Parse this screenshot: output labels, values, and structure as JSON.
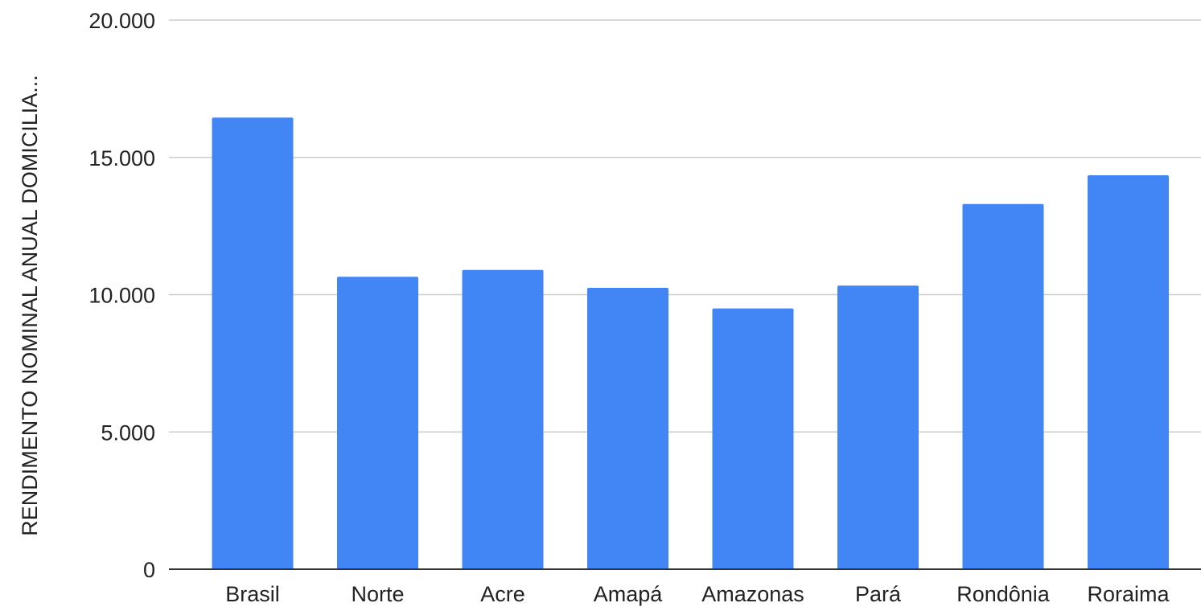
{
  "chart_data": {
    "type": "bar",
    "title": "",
    "xlabel": "",
    "ylabel": "RENDIMENTO NOMINAL ANUAL DOMICILIA...",
    "categories": [
      "Brasil",
      "Norte",
      "Acre",
      "Amapá",
      "Amazonas",
      "Pará",
      "Rondônia",
      "Roraima"
    ],
    "values": [
      16450,
      10650,
      10900,
      10250,
      9500,
      10330,
      13300,
      14350
    ],
    "ylim": [
      0,
      20000
    ],
    "yticks": [
      0,
      5000,
      10000,
      15000,
      20000
    ],
    "ytick_labels": [
      "0",
      "5.000",
      "10.000",
      "15.000",
      "20.000"
    ],
    "grid": true,
    "legend": "none",
    "bar_color": "#4285f4",
    "grid_color": "#cccccc",
    "axis_color": "#333333"
  }
}
